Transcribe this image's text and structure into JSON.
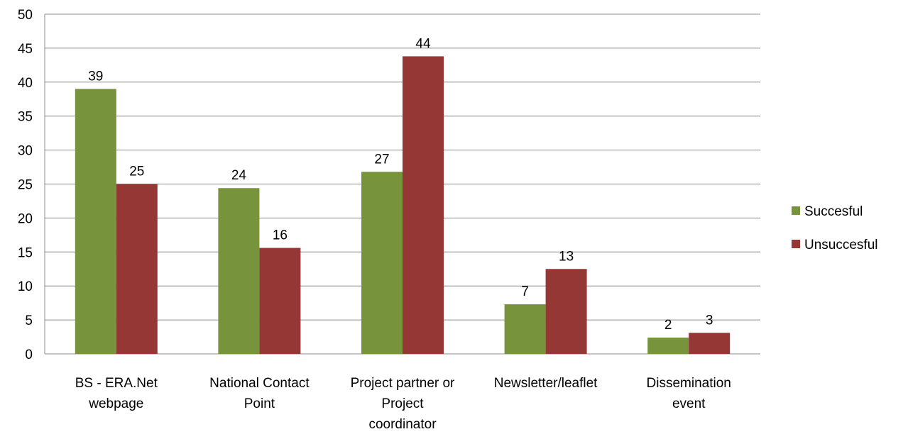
{
  "chart_data": {
    "type": "bar",
    "categories": [
      [
        "BS - ERA.Net",
        "webpage"
      ],
      [
        "National Contact",
        "Point"
      ],
      [
        "Project partner or",
        "Project",
        "coordinator"
      ],
      [
        "Newsletter/leaflet"
      ],
      [
        "Dissemination",
        "event"
      ]
    ],
    "series": [
      {
        "name": "Succesful",
        "color": "#77933C",
        "values": [
          39,
          24.4,
          26.8,
          7.3,
          2.4
        ],
        "labels": [
          "39",
          "24",
          "27",
          "7",
          "2"
        ]
      },
      {
        "name": "Unsuccesful",
        "color": "#953735",
        "values": [
          25,
          15.6,
          43.8,
          12.5,
          3.1
        ],
        "labels": [
          "25",
          "16",
          "44",
          "13",
          "3"
        ]
      }
    ],
    "ylim": [
      0,
      50
    ],
    "yticks": [
      0,
      5,
      10,
      15,
      20,
      25,
      30,
      35,
      40,
      45,
      50
    ],
    "grid": true,
    "legend_position": "right",
    "title": "",
    "xlabel": "",
    "ylabel": ""
  }
}
